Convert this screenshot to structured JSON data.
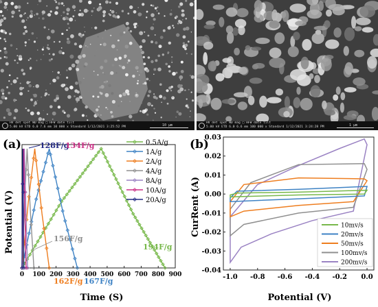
{
  "sem_images": [
    {
      "header": "HV    det  spot  WD     mag  □  HFW    date  tilt",
      "values": "5.00 kV  ETD  6.0  7.6 mm  10 000 x  Standard  1/12/2021  3:25:52 PM",
      "scale": "10 µm"
    },
    {
      "header": "HV    det  spot  WD     mag  □  HFW    date  tilt",
      "values": "5.00 kV  ETD  6.0  6.6 mm  100 000 x  Standard  1/12/2021  3:24:28 PM",
      "scale": "1 µm"
    }
  ],
  "chart_data": [
    {
      "panel": "(a)",
      "type": "line",
      "xlabel": "Time (S)",
      "ylabel": "Potential (V)",
      "xlim": [
        0,
        900
      ],
      "x_ticks": [
        "0",
        "100",
        "200",
        "300",
        "400",
        "500",
        "600",
        "700",
        "800",
        "900"
      ],
      "y_tick_labels": "none",
      "series": [
        {
          "name": "0.5A/g",
          "color": "#77b84a",
          "charge_end_s": 465,
          "discharge_end_s": 840,
          "capacitance_label": "194F/g"
        },
        {
          "name": "1A/g",
          "color": "#3d82c4",
          "charge_end_s": 160,
          "discharge_end_s": 325,
          "capacitance_label": "167F/g"
        },
        {
          "name": "2A/g",
          "color": "#ee7d1e",
          "charge_end_s": 75,
          "discharge_end_s": 160,
          "capacitance_label": "162F/g"
        },
        {
          "name": "4A/g",
          "color": "#8f8f8f",
          "charge_end_s": 30,
          "discharge_end_s": 70,
          "capacitance_label": "156F/g"
        },
        {
          "name": "8A/g",
          "color": "#9a82c3",
          "charge_end_s": 14,
          "discharge_end_s": 33,
          "capacitance_label": "134F/g"
        },
        {
          "name": "10A/g",
          "color": "#cc2f86",
          "charge_end_s": 10,
          "discharge_end_s": 24,
          "capacitance_label": "134F/g"
        },
        {
          "name": "20A/g",
          "color": "#232a84",
          "charge_end_s": 5,
          "discharge_end_s": 11,
          "capacitance_label": "128F/g"
        }
      ]
    },
    {
      "panel": "(b)",
      "type": "line",
      "xlabel": "Potential (V)",
      "ylabel": "CurRent (A)",
      "xlim": [
        -1.05,
        0.05
      ],
      "ylim": [
        -0.04,
        0.03
      ],
      "x_ticks": [
        "-1.0",
        "-0.8",
        "-0.6",
        "-0.4",
        "-0.2",
        "0.0"
      ],
      "y_ticks": [
        "0.03",
        "0.02",
        "0.01",
        "0.00",
        "-0.01",
        "-0.02",
        "-0.03",
        "-0.04"
      ],
      "series": [
        {
          "name": "10mv/s",
          "color": "#77b84a",
          "upper": [
            [
              -1.0,
              -0.0005
            ],
            [
              -0.95,
              0.0005
            ],
            [
              -0.5,
              0.001
            ],
            [
              0.0,
              0.002
            ]
          ],
          "lower": [
            [
              -1.0,
              -0.0015
            ],
            [
              -0.5,
              -0.0005
            ],
            [
              -0.02,
              0.0
            ],
            [
              0.0,
              0.002
            ]
          ]
        },
        {
          "name": "20mv/s",
          "color": "#3d82c4",
          "upper": [
            [
              -1.0,
              -0.002
            ],
            [
              -0.95,
              0.0015
            ],
            [
              -0.5,
              0.0025
            ],
            [
              0.0,
              0.004
            ]
          ],
          "lower": [
            [
              -1.0,
              -0.004
            ],
            [
              -0.5,
              -0.0025
            ],
            [
              -0.02,
              -0.001
            ],
            [
              0.0,
              0.004
            ]
          ]
        },
        {
          "name": "50mv/s",
          "color": "#ee7d1e",
          "upper": [
            [
              -1.0,
              -0.004
            ],
            [
              -0.9,
              0.005
            ],
            [
              -0.5,
              0.0085
            ],
            [
              -0.02,
              0.008
            ],
            [
              0.0,
              0.007
            ]
          ],
          "lower": [
            [
              -1.0,
              -0.012
            ],
            [
              -0.9,
              -0.009
            ],
            [
              -0.5,
              -0.006
            ],
            [
              -0.1,
              -0.004
            ],
            [
              0.0,
              0.007
            ]
          ]
        },
        {
          "name": "100mv/s",
          "color": "#8f8f8f",
          "upper": [
            [
              -1.0,
              -0.008
            ],
            [
              -0.85,
              0.006
            ],
            [
              -0.5,
              0.0155
            ],
            [
              -0.02,
              0.016
            ],
            [
              0.0,
              0.013
            ]
          ],
          "lower": [
            [
              -1.0,
              -0.022
            ],
            [
              -0.9,
              -0.016
            ],
            [
              -0.5,
              -0.01
            ],
            [
              -0.1,
              -0.007
            ],
            [
              0.0,
              0.013
            ]
          ]
        },
        {
          "name": "200mv/s",
          "color": "#9a82c3",
          "upper": [
            [
              -1.0,
              -0.012
            ],
            [
              -0.8,
              0.005
            ],
            [
              -0.5,
              0.015
            ],
            [
              -0.2,
              0.024
            ],
            [
              -0.02,
              0.029
            ],
            [
              0.0,
              0.026
            ]
          ],
          "lower": [
            [
              -1.0,
              -0.036
            ],
            [
              -0.92,
              -0.028
            ],
            [
              -0.7,
              -0.021
            ],
            [
              -0.4,
              -0.014
            ],
            [
              -0.1,
              -0.009
            ],
            [
              0.0,
              0.026
            ]
          ]
        }
      ]
    }
  ]
}
